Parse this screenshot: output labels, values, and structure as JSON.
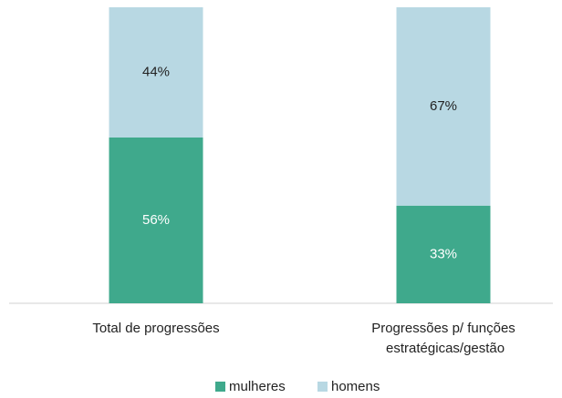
{
  "chart_data": {
    "type": "stacked_bar",
    "categories": [
      "Total de progressões",
      "Progressões p/ funções estratégicas/gestão"
    ],
    "series": [
      {
        "name": "mulheres",
        "color": "#3fa98c",
        "label_color": "#ffffff",
        "values": [
          56,
          33
        ],
        "value_labels": [
          "56%",
          "33%"
        ]
      },
      {
        "name": "homens",
        "color": "#b8d8e3",
        "label_color": "#222222",
        "values": [
          44,
          67
        ],
        "value_labels": [
          "44%",
          "67%"
        ]
      }
    ],
    "ylim": [
      0,
      100
    ],
    "legend": "bottom"
  }
}
